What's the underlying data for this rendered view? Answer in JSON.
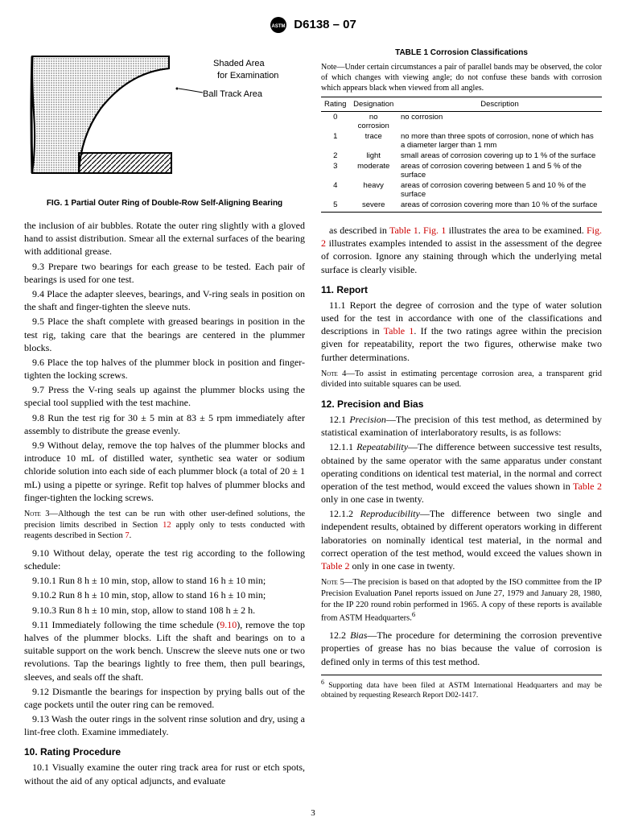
{
  "header": {
    "designation": "D6138 – 07"
  },
  "figure1": {
    "label1": "Shaded Area",
    "label2": "for Examination",
    "label3": "Ball Track Area",
    "caption": "FIG. 1 Partial Outer Ring of Double-Row Self-Aligning Bearing"
  },
  "leftcol": {
    "p1": "the inclusion of air bubbles. Rotate the outer ring slightly with a gloved hand to assist distribution. Smear all the external surfaces of the bearing with additional grease.",
    "p2": "9.3 Prepare two bearings for each grease to be tested. Each pair of bearings is used for one test.",
    "p3": "9.4 Place the adapter sleeves, bearings, and V-ring seals in position on the shaft and finger-tighten the sleeve nuts.",
    "p4": "9.5 Place the shaft complete with greased bearings in position in the test rig, taking care that the bearings are centered in the plummer blocks.",
    "p5": "9.6 Place the top halves of the plummer block in position and finger-tighten the locking screws.",
    "p6": "9.7 Press the V-ring seals up against the plummer blocks using the special tool supplied with the test machine.",
    "p7": "9.8 Run the test rig for 30 ± 5 min at 83 ± 5 rpm immediately after assembly to distribute the grease evenly.",
    "p8": "9.9 Without delay, remove the top halves of the plummer blocks and introduce 10 mL of distilled water, synthetic sea water or sodium chloride solution into each side of each plummer block (a total of 20 ± 1 mL) using a pipette or syringe. Refit top halves of plummer blocks and finger-tighten the locking screws.",
    "note3": "3—Although the test can be run with other user-defined solutions, the precision limits described in Section ",
    "note3b": " apply only to tests conducted with reagents described in Section ",
    "note3_link1": "12",
    "note3_link2": "7",
    "note3_end": ".",
    "p9": "9.10 Without delay, operate the test rig according to the following schedule:",
    "p10": "9.10.1 Run 8 h ± 10 min, stop, allow to stand 16 h ± 10 min;",
    "p11": "9.10.2 Run 8 h ± 10 min, stop, allow to stand 16 h ± 10 min;",
    "p12": "9.10.3 Run 8 h ± 10 min, stop, allow to stand 108 h ± 2 h.",
    "p13a": "9.11 Immediately following the time schedule (",
    "p13link": "9.10",
    "p13b": "), remove the top halves of the plummer blocks. Lift the shaft and bearings on to a suitable support on the work bench. Unscrew the sleeve nuts one or two revolutions. Tap the bearings lightly to free them, then pull bearings, sleeves, and seals off the shaft.",
    "p14": "9.12 Dismantle the bearings for inspection by prying balls out of the cage pockets until the outer ring can be removed.",
    "p15": "9.13 Wash the outer rings in the solvent rinse solution and dry, using a lint-free cloth. Examine immediately.",
    "sec10": "10. Rating Procedure",
    "p16": "10.1 Visually examine the outer ring track area for rust or etch spots, without the aid of any optical adjuncts, and evaluate"
  },
  "table1": {
    "title": "TABLE 1 Corrosion Classifications",
    "note": "—Under certain circumstances a pair of parallel bands may be observed, the color of which changes with viewing angle; do not confuse these bands with corrosion which appears black when viewed from all angles.",
    "cols": [
      "Rating",
      "Designation",
      "Description"
    ],
    "rows": [
      [
        "0",
        "no corrosion",
        "no corrosion"
      ],
      [
        "1",
        "trace",
        "no more than three spots of corrosion, none of which has a diameter larger than 1 mm"
      ],
      [
        "2",
        "light",
        "small areas of corrosion covering up to 1 % of the surface"
      ],
      [
        "3",
        "moderate",
        "areas of corrosion covering between 1 and 5 % of the surface"
      ],
      [
        "4",
        "heavy",
        "areas of corrosion covering between 5 and 10 % of the surface"
      ],
      [
        "5",
        "severe",
        "areas of corrosion covering more than 10 % of the surface"
      ]
    ]
  },
  "rightcol": {
    "p1a": "as described in ",
    "p1l1": "Table 1",
    "p1b": ". ",
    "p1l2": "Fig. 1",
    "p1c": " illustrates the area to be examined. ",
    "p1l3": "Fig. 2",
    "p1d": " illustrates examples intended to assist in the assessment of the degree of corrosion. Ignore any staining through which the underlying metal surface is clearly visible.",
    "sec11": "11. Report",
    "p2a": "11.1 Report the degree of corrosion and the type of water solution used for the test in accordance with one of the classifications and descriptions in ",
    "p2l": "Table 1",
    "p2b": ". If the two ratings agree within the precision given for repeatability, report the two figures, otherwise make two further determinations.",
    "note4": "4—To assist in estimating percentage corrosion area, a transparent grid divided into suitable squares can be used.",
    "sec12": "12. Precision and Bias",
    "p3": "12.1 Precision—The precision of this test method, as determined by statistical examination of interlaboratory results, is as follows:",
    "p4a": "12.1.1 Repeatability—The difference between successive test results, obtained by the same operator with the same apparatus under constant operating conditions on identical test material, in the normal and correct operation of the test method, would exceed the values shown in ",
    "p4l": "Table 2",
    "p4b": " only in one case in twenty.",
    "p5a": "12.1.2 Reproducibility—The difference between two single and independent results, obtained by different operators working in different laboratories on nominally identical test material, in the normal and correct operation of the test method, would exceed the values shown in ",
    "p5l": "Table 2",
    "p5b": " only in one case in twenty.",
    "note5": "5—The precision is based on that adopted by the ISO committee from the IP Precision Evaluation Panel reports issued on June 27, 1979 and January 28, 1980, for the IP 220 round robin performed in 1965. A copy of these reports is available from ASTM Headquarters.",
    "p6": "12.2 Bias—The procedure for determining the corrosion preventive properties of grease has no bias because the value of corrosion is defined only in terms of this test method.",
    "footnote": "Supporting data have been filed at ASTM International Headquarters and may be obtained by requesting Research Report D02-1417."
  },
  "page": "3"
}
